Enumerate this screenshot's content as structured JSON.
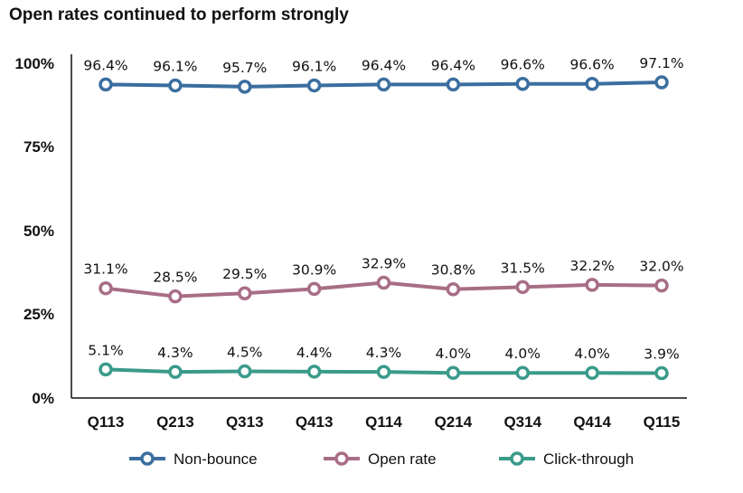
{
  "chart_data": {
    "type": "line",
    "title": "Open rates continued to perform strongly",
    "xlabel": "",
    "ylabel": "",
    "categories": [
      "Q113",
      "Q213",
      "Q313",
      "Q413",
      "Q114",
      "Q214",
      "Q314",
      "Q414",
      "Q115"
    ],
    "y_ticks": [
      "0%",
      "25%",
      "50%",
      "75%",
      "100%"
    ],
    "ylim": [
      0,
      100
    ],
    "legend_position": "bottom",
    "grid": false,
    "series": [
      {
        "name": "Non-bounce",
        "color": "#3b6e9f",
        "values": [
          96.4,
          96.1,
          95.7,
          96.1,
          96.4,
          96.4,
          96.6,
          96.6,
          97.1
        ],
        "labels": [
          "96.4%",
          "96.1%",
          "95.7%",
          "96.1%",
          "96.4%",
          "96.4%",
          "96.6%",
          "96.6%",
          "97.1%"
        ]
      },
      {
        "name": "Open rate",
        "color": "#a86e86",
        "values": [
          31.1,
          28.5,
          29.5,
          30.9,
          32.9,
          30.8,
          31.5,
          32.2,
          32.0
        ],
        "labels": [
          "31.1%",
          "28.5%",
          "29.5%",
          "30.9%",
          "32.9%",
          "30.8%",
          "31.5%",
          "32.2%",
          "32.0%"
        ]
      },
      {
        "name": "Click-through",
        "color": "#3a9b8a",
        "values": [
          5.1,
          4.3,
          4.5,
          4.4,
          4.3,
          4.0,
          4.0,
          4.0,
          3.9
        ],
        "labels": [
          "5.1%",
          "4.3%",
          "4.5%",
          "4.4%",
          "4.3%",
          "4.0%",
          "4.0%",
          "4.0%",
          "3.9%"
        ]
      }
    ]
  }
}
